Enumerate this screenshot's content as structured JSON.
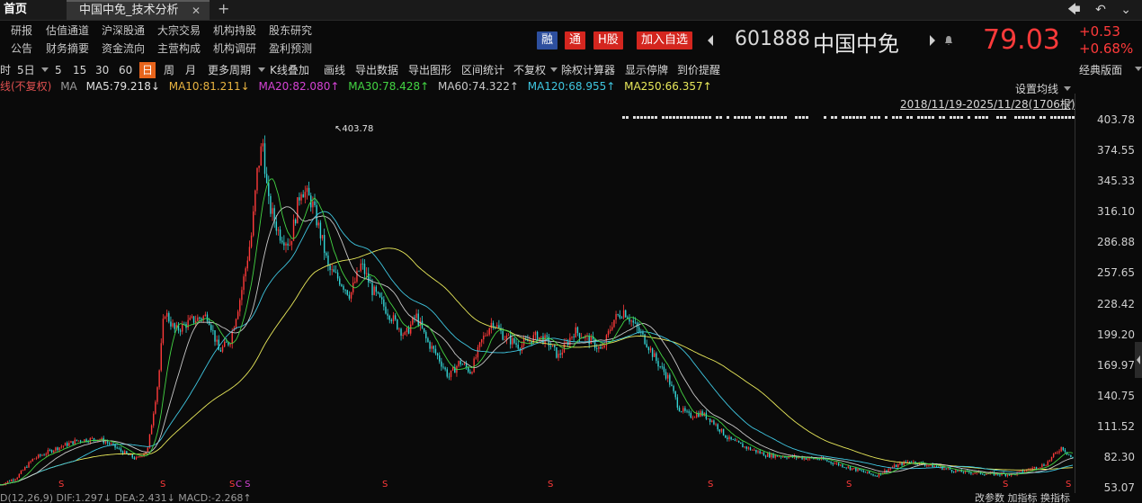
{
  "tabs": {
    "home": "首页",
    "active": "中国中免_技术分析",
    "close": "✕",
    "new": "+"
  },
  "window_controls": "🡄 ↶ ⌄",
  "quick_links": {
    "row1": [
      "研报",
      "估值通道",
      "沪深股通",
      "大宗交易",
      "机构持股",
      "股东研究"
    ],
    "row2": [
      "公告",
      "财务摘要",
      "资金流向",
      "主营构成",
      "机构调研",
      "盈利预测"
    ]
  },
  "stock": {
    "tags": [
      "融",
      "通",
      "H股",
      "加入自选"
    ],
    "code": "601888",
    "name": "中国中免",
    "price": "79.03",
    "change": "+0.53",
    "change_pct": "+0.68%",
    "up_color": "#ff3a3a"
  },
  "toolbar": {
    "items": [
      "时",
      "5日",
      "5",
      "15",
      "30",
      "60",
      "日",
      "周",
      "月",
      "更多周期",
      "K线叠加",
      "画线",
      "导出数据",
      "导出图形",
      "区间统计",
      "不复权",
      "除权计算器",
      "显示停牌",
      "到价提醒"
    ],
    "selected": "日",
    "right": "经典版面"
  },
  "ma_row": {
    "prefix": "线(不复权)",
    "ma_label": "MA",
    "ma5": "MA5:79.218↓",
    "ma10": "MA10:81.211↓",
    "ma20": "MA20:82.080↑",
    "ma30": "MA30:78.428↑",
    "ma60": "MA60:74.322↑",
    "ma120": "MA120:68.955↑",
    "ma250": "MA250:66.357↑",
    "colors": {
      "ma5": "#e0e0e0",
      "ma10": "#e8b341",
      "ma20": "#d443d4",
      "ma30": "#43d443",
      "ma60": "#c8c8c8",
      "ma120": "#3fc6e0",
      "ma250": "#e8e85a"
    }
  },
  "chart_header": {
    "settings": "设置均线",
    "range": "2018/11/19-2025/11/28(1706根)"
  },
  "chart_data": {
    "type": "candlestick",
    "title": "中国中免",
    "period": "2018/11/19-2025/11/28",
    "bars": 1706,
    "y_axis_ticks": [
      "403.78",
      "374.55",
      "345.33",
      "316.10",
      "286.88",
      "257.65",
      "228.42",
      "199.20",
      "169.97",
      "140.75",
      "111.52",
      "82.30",
      "53.07"
    ],
    "ylim": [
      53.07,
      403.78
    ],
    "max_annotation": "403.78",
    "price_path": [
      [
        0,
        55
      ],
      [
        0.03,
        62
      ],
      [
        0.06,
        80
      ],
      [
        0.1,
        90
      ],
      [
        0.14,
        98
      ],
      [
        0.18,
        100
      ],
      [
        0.2,
        95
      ],
      [
        0.23,
        85
      ],
      [
        0.25,
        80
      ],
      [
        0.27,
        90
      ],
      [
        0.29,
        160
      ],
      [
        0.3,
        225
      ],
      [
        0.32,
        205
      ],
      [
        0.35,
        215
      ],
      [
        0.38,
        220
      ],
      [
        0.4,
        185
      ],
      [
        0.42,
        195
      ],
      [
        0.44,
        240
      ],
      [
        0.46,
        300
      ],
      [
        0.47,
        360
      ],
      [
        0.48,
        390
      ],
      [
        0.49,
        330
      ],
      [
        0.51,
        300
      ],
      [
        0.53,
        290
      ],
      [
        0.55,
        345
      ],
      [
        0.57,
        330
      ],
      [
        0.59,
        290
      ],
      [
        0.6,
        265
      ],
      [
        0.62,
        255
      ],
      [
        0.64,
        240
      ],
      [
        0.66,
        270
      ],
      [
        0.68,
        245
      ],
      [
        0.7,
        230
      ],
      [
        0.72,
        215
      ],
      [
        0.74,
        200
      ],
      [
        0.76,
        220
      ],
      [
        0.78,
        195
      ],
      [
        0.8,
        180
      ],
      [
        0.82,
        160
      ],
      [
        0.84,
        175
      ],
      [
        0.86,
        165
      ],
      [
        0.88,
        195
      ],
      [
        0.9,
        215
      ],
      [
        0.92,
        200
      ],
      [
        0.95,
        190
      ],
      [
        0.98,
        200
      ],
      [
        1.0,
        195
      ],
      [
        1.02,
        180
      ],
      [
        1.05,
        205
      ],
      [
        1.08,
        195
      ],
      [
        1.1,
        185
      ],
      [
        1.12,
        215
      ],
      [
        1.14,
        225
      ],
      [
        1.16,
        210
      ],
      [
        1.18,
        195
      ],
      [
        1.2,
        175
      ],
      [
        1.22,
        160
      ],
      [
        1.24,
        130
      ],
      [
        1.26,
        122
      ],
      [
        1.28,
        125
      ],
      [
        1.3,
        118
      ],
      [
        1.33,
        100
      ],
      [
        1.36,
        92
      ],
      [
        1.4,
        84
      ],
      [
        1.45,
        82
      ],
      [
        1.5,
        80
      ],
      [
        1.55,
        72
      ],
      [
        1.6,
        64
      ],
      [
        1.63,
        72
      ],
      [
        1.66,
        78
      ],
      [
        1.7,
        74
      ],
      [
        1.75,
        68
      ],
      [
        1.8,
        66
      ],
      [
        1.85,
        65
      ],
      [
        1.88,
        70
      ],
      [
        1.91,
        75
      ],
      [
        1.94,
        92
      ],
      [
        1.96,
        80
      ]
    ],
    "ma_lines": [
      {
        "name": "MA250",
        "color": "#e8e85a"
      },
      {
        "name": "MA120",
        "color": "#3fc6e0"
      },
      {
        "name": "MA60",
        "color": "#c8c8c8"
      },
      {
        "name": "MA30",
        "color": "#43d443"
      }
    ]
  },
  "ex_markers": [
    "S",
    "S",
    "S",
    "C S",
    "S",
    "S",
    "S",
    "S",
    "S",
    "S"
  ],
  "bottom": {
    "left": "D(12,26,9)  DIF:1.297↓  DEA:2.431↓  MACD:-2.268↑",
    "right": "改参数  加指标  换指标"
  }
}
